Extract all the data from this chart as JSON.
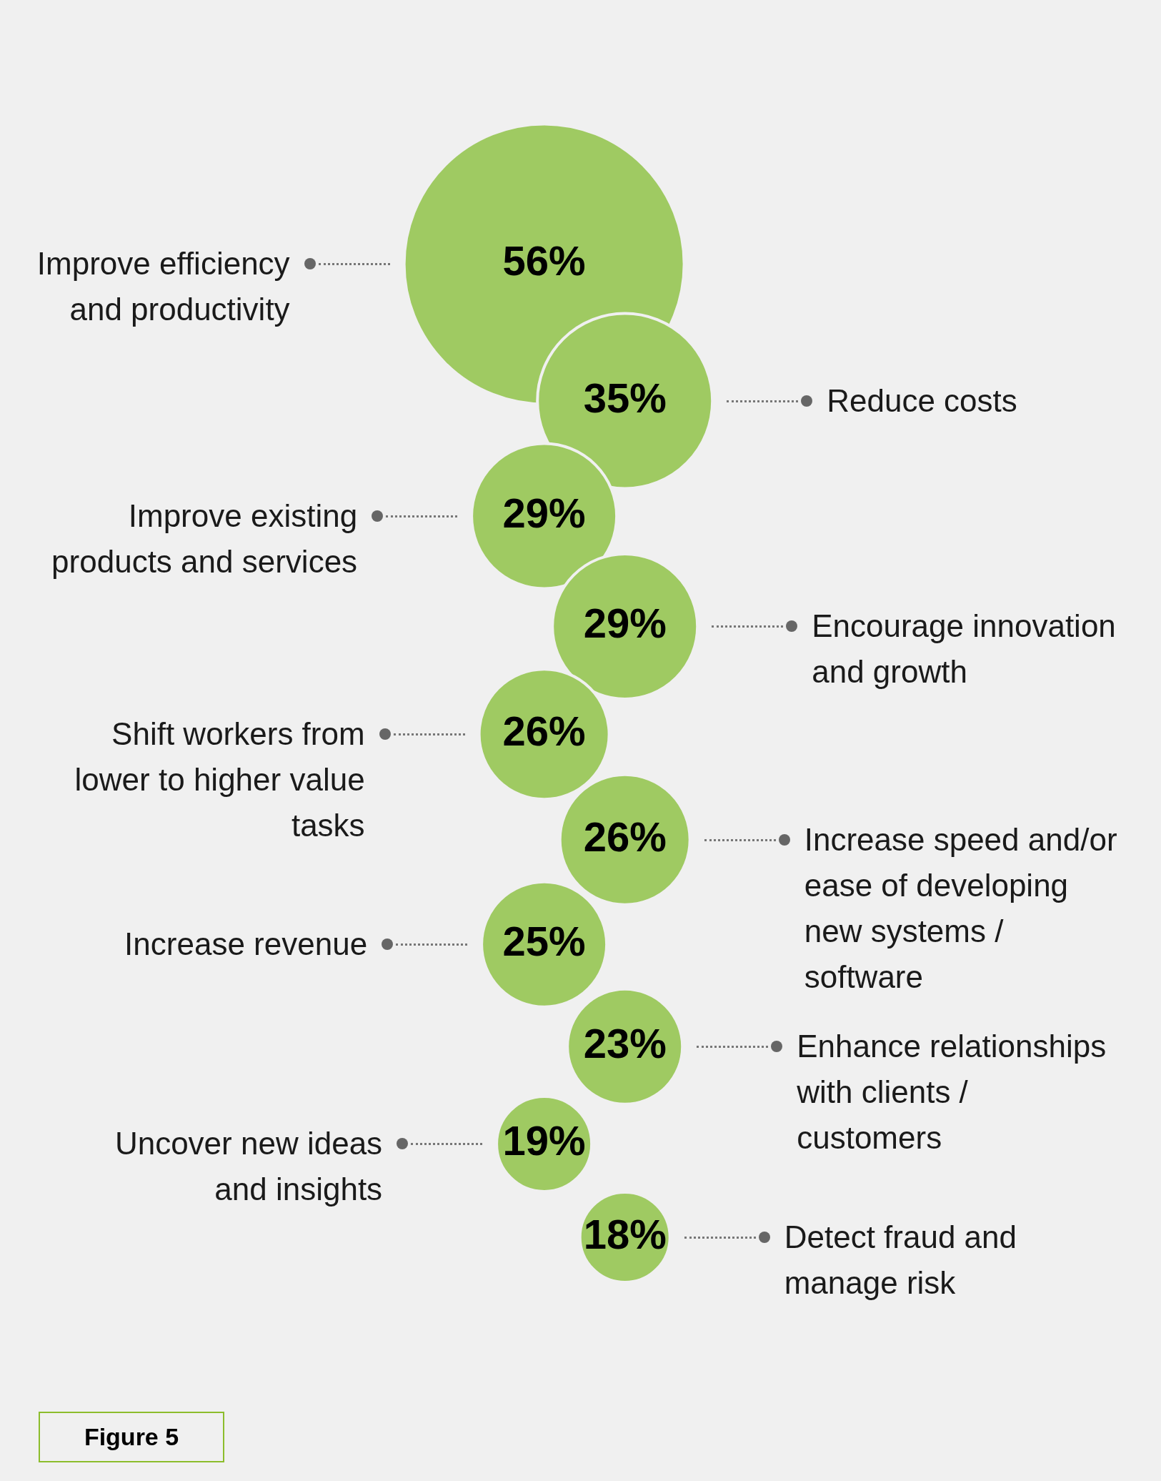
{
  "chart_data": {
    "type": "other",
    "categories": [
      "Improve efficiency and productivity",
      "Reduce costs",
      "Improve existing products and services",
      "Encourage innovation and growth",
      "Shift workers from lower to higher value tasks",
      "Increase speed and/or ease of developing new systems / software",
      "Increase revenue",
      "Enhance relationships with clients / customers",
      "Uncover new ideas and insights",
      "Detect fraud and manage risk"
    ],
    "values": [
      56,
      35,
      29,
      29,
      26,
      26,
      25,
      23,
      19,
      18
    ],
    "value_labels": [
      "56%",
      "35%",
      "29%",
      "29%",
      "26%",
      "26%",
      "25%",
      "23%",
      "19%",
      "18%"
    ],
    "color": "#9fca62",
    "annotations": [
      "Figure 5"
    ]
  }
}
